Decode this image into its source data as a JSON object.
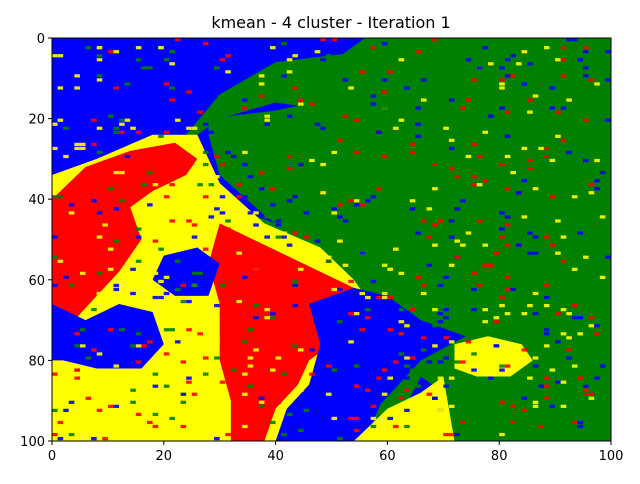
{
  "chart_data": {
    "type": "heatmap",
    "title": "kmean - 4 cluster - Iteration 1",
    "xlabel": "",
    "ylabel": "",
    "xlim": [
      0,
      100
    ],
    "ylim": [
      0,
      100
    ],
    "y_inverted": true,
    "x_ticks": [
      "0",
      "20",
      "40",
      "60",
      "80",
      "100"
    ],
    "y_ticks": [
      "0",
      "20",
      "40",
      "60",
      "80",
      "100"
    ],
    "grid": false,
    "legend": "none",
    "cluster_count": 4,
    "cluster_colors": [
      "#0000ff",
      "#008000",
      "#ffff00",
      "#ff0000"
    ],
    "cluster_regions": [
      {
        "cluster": 1,
        "color": "#008000",
        "polygon": [
          [
            28,
            20
          ],
          [
            40,
            18
          ],
          [
            60,
            12
          ],
          [
            70,
            0
          ],
          [
            100,
            0
          ],
          [
            100,
            68
          ],
          [
            92,
            72
          ],
          [
            82,
            80
          ],
          [
            70,
            88
          ],
          [
            60,
            98
          ],
          [
            60,
            100
          ],
          [
            100,
            100
          ],
          [
            100,
            100
          ],
          [
            72,
            84
          ],
          [
            66,
            72
          ],
          [
            58,
            62
          ],
          [
            48,
            54
          ],
          [
            38,
            44
          ],
          [
            30,
            34
          ],
          [
            28,
            24
          ]
        ]
      },
      {
        "cluster": 1,
        "color": "#008000",
        "polygon": [
          [
            56,
            0
          ],
          [
            100,
            0
          ],
          [
            100,
            20
          ],
          [
            80,
            24
          ],
          [
            60,
            20
          ],
          [
            40,
            16
          ],
          [
            30,
            20
          ],
          [
            26,
            24
          ],
          [
            30,
            40
          ],
          [
            36,
            44
          ],
          [
            48,
            50
          ],
          [
            58,
            56
          ],
          [
            60,
            62
          ],
          [
            66,
            70
          ],
          [
            74,
            74
          ],
          [
            84,
            74
          ],
          [
            92,
            68
          ],
          [
            100,
            64
          ],
          [
            100,
            100
          ],
          [
            86,
            100
          ],
          [
            72,
            90
          ],
          [
            66,
            84
          ],
          [
            60,
            100
          ],
          [
            56,
            100
          ],
          [
            62,
            80
          ],
          [
            58,
            74
          ],
          [
            54,
            70
          ],
          [
            52,
            60
          ],
          [
            46,
            52
          ],
          [
            34,
            44
          ],
          [
            30,
            36
          ],
          [
            26,
            30
          ],
          [
            24,
            24
          ],
          [
            30,
            14
          ],
          [
            40,
            6
          ],
          [
            52,
            4
          ]
        ]
      },
      {
        "cluster": 2,
        "color": "#ffff00",
        "polygon": [
          [
            0,
            34
          ],
          [
            8,
            30
          ],
          [
            18,
            24
          ],
          [
            26,
            24
          ],
          [
            30,
            36
          ],
          [
            38,
            46
          ],
          [
            48,
            52
          ],
          [
            54,
            60
          ],
          [
            58,
            68
          ],
          [
            54,
            74
          ],
          [
            50,
            80
          ],
          [
            46,
            86
          ],
          [
            42,
            92
          ],
          [
            40,
            100
          ],
          [
            0,
            100
          ]
        ]
      },
      {
        "cluster": 2,
        "color": "#ffff00",
        "polygon": [
          [
            54,
            100
          ],
          [
            60,
            92
          ],
          [
            66,
            88
          ],
          [
            70,
            84
          ],
          [
            72,
            100
          ]
        ]
      },
      {
        "cluster": 2,
        "color": "#ffff00",
        "polygon": [
          [
            72,
            76
          ],
          [
            78,
            74
          ],
          [
            84,
            76
          ],
          [
            86,
            80
          ],
          [
            82,
            84
          ],
          [
            76,
            84
          ],
          [
            72,
            82
          ]
        ]
      },
      {
        "cluster": 3,
        "color": "#ff0000",
        "polygon": [
          [
            0,
            40
          ],
          [
            6,
            32
          ],
          [
            14,
            28
          ],
          [
            22,
            26
          ],
          [
            26,
            30
          ],
          [
            24,
            34
          ],
          [
            18,
            38
          ],
          [
            14,
            42
          ],
          [
            16,
            50
          ],
          [
            12,
            58
          ],
          [
            8,
            64
          ],
          [
            4,
            70
          ],
          [
            0,
            70
          ]
        ]
      },
      {
        "cluster": 3,
        "color": "#ff0000",
        "polygon": [
          [
            30,
            46
          ],
          [
            36,
            50
          ],
          [
            42,
            54
          ],
          [
            48,
            58
          ],
          [
            54,
            62
          ],
          [
            58,
            68
          ],
          [
            54,
            72
          ],
          [
            50,
            76
          ],
          [
            46,
            80
          ],
          [
            44,
            86
          ],
          [
            40,
            92
          ],
          [
            38,
            100
          ],
          [
            32,
            100
          ],
          [
            32,
            90
          ],
          [
            30,
            80
          ],
          [
            30,
            66
          ],
          [
            28,
            56
          ]
        ]
      },
      {
        "cluster": 0,
        "color": "#0000ff",
        "polygon": [
          [
            0,
            66
          ],
          [
            6,
            70
          ],
          [
            12,
            66
          ],
          [
            18,
            68
          ],
          [
            20,
            76
          ],
          [
            16,
            82
          ],
          [
            8,
            82
          ],
          [
            2,
            80
          ],
          [
            0,
            80
          ]
        ]
      },
      {
        "cluster": 0,
        "color": "#0000ff",
        "polygon": [
          [
            20,
            54
          ],
          [
            26,
            52
          ],
          [
            30,
            56
          ],
          [
            28,
            64
          ],
          [
            22,
            64
          ],
          [
            18,
            60
          ]
        ]
      },
      {
        "cluster": 0,
        "color": "#0000ff",
        "polygon": [
          [
            46,
            66
          ],
          [
            54,
            62
          ],
          [
            60,
            64
          ],
          [
            66,
            70
          ],
          [
            74,
            74
          ],
          [
            66,
            80
          ],
          [
            62,
            86
          ],
          [
            58,
            92
          ],
          [
            52,
            98
          ],
          [
            48,
            96
          ],
          [
            46,
            86
          ],
          [
            48,
            76
          ]
        ]
      }
    ]
  }
}
